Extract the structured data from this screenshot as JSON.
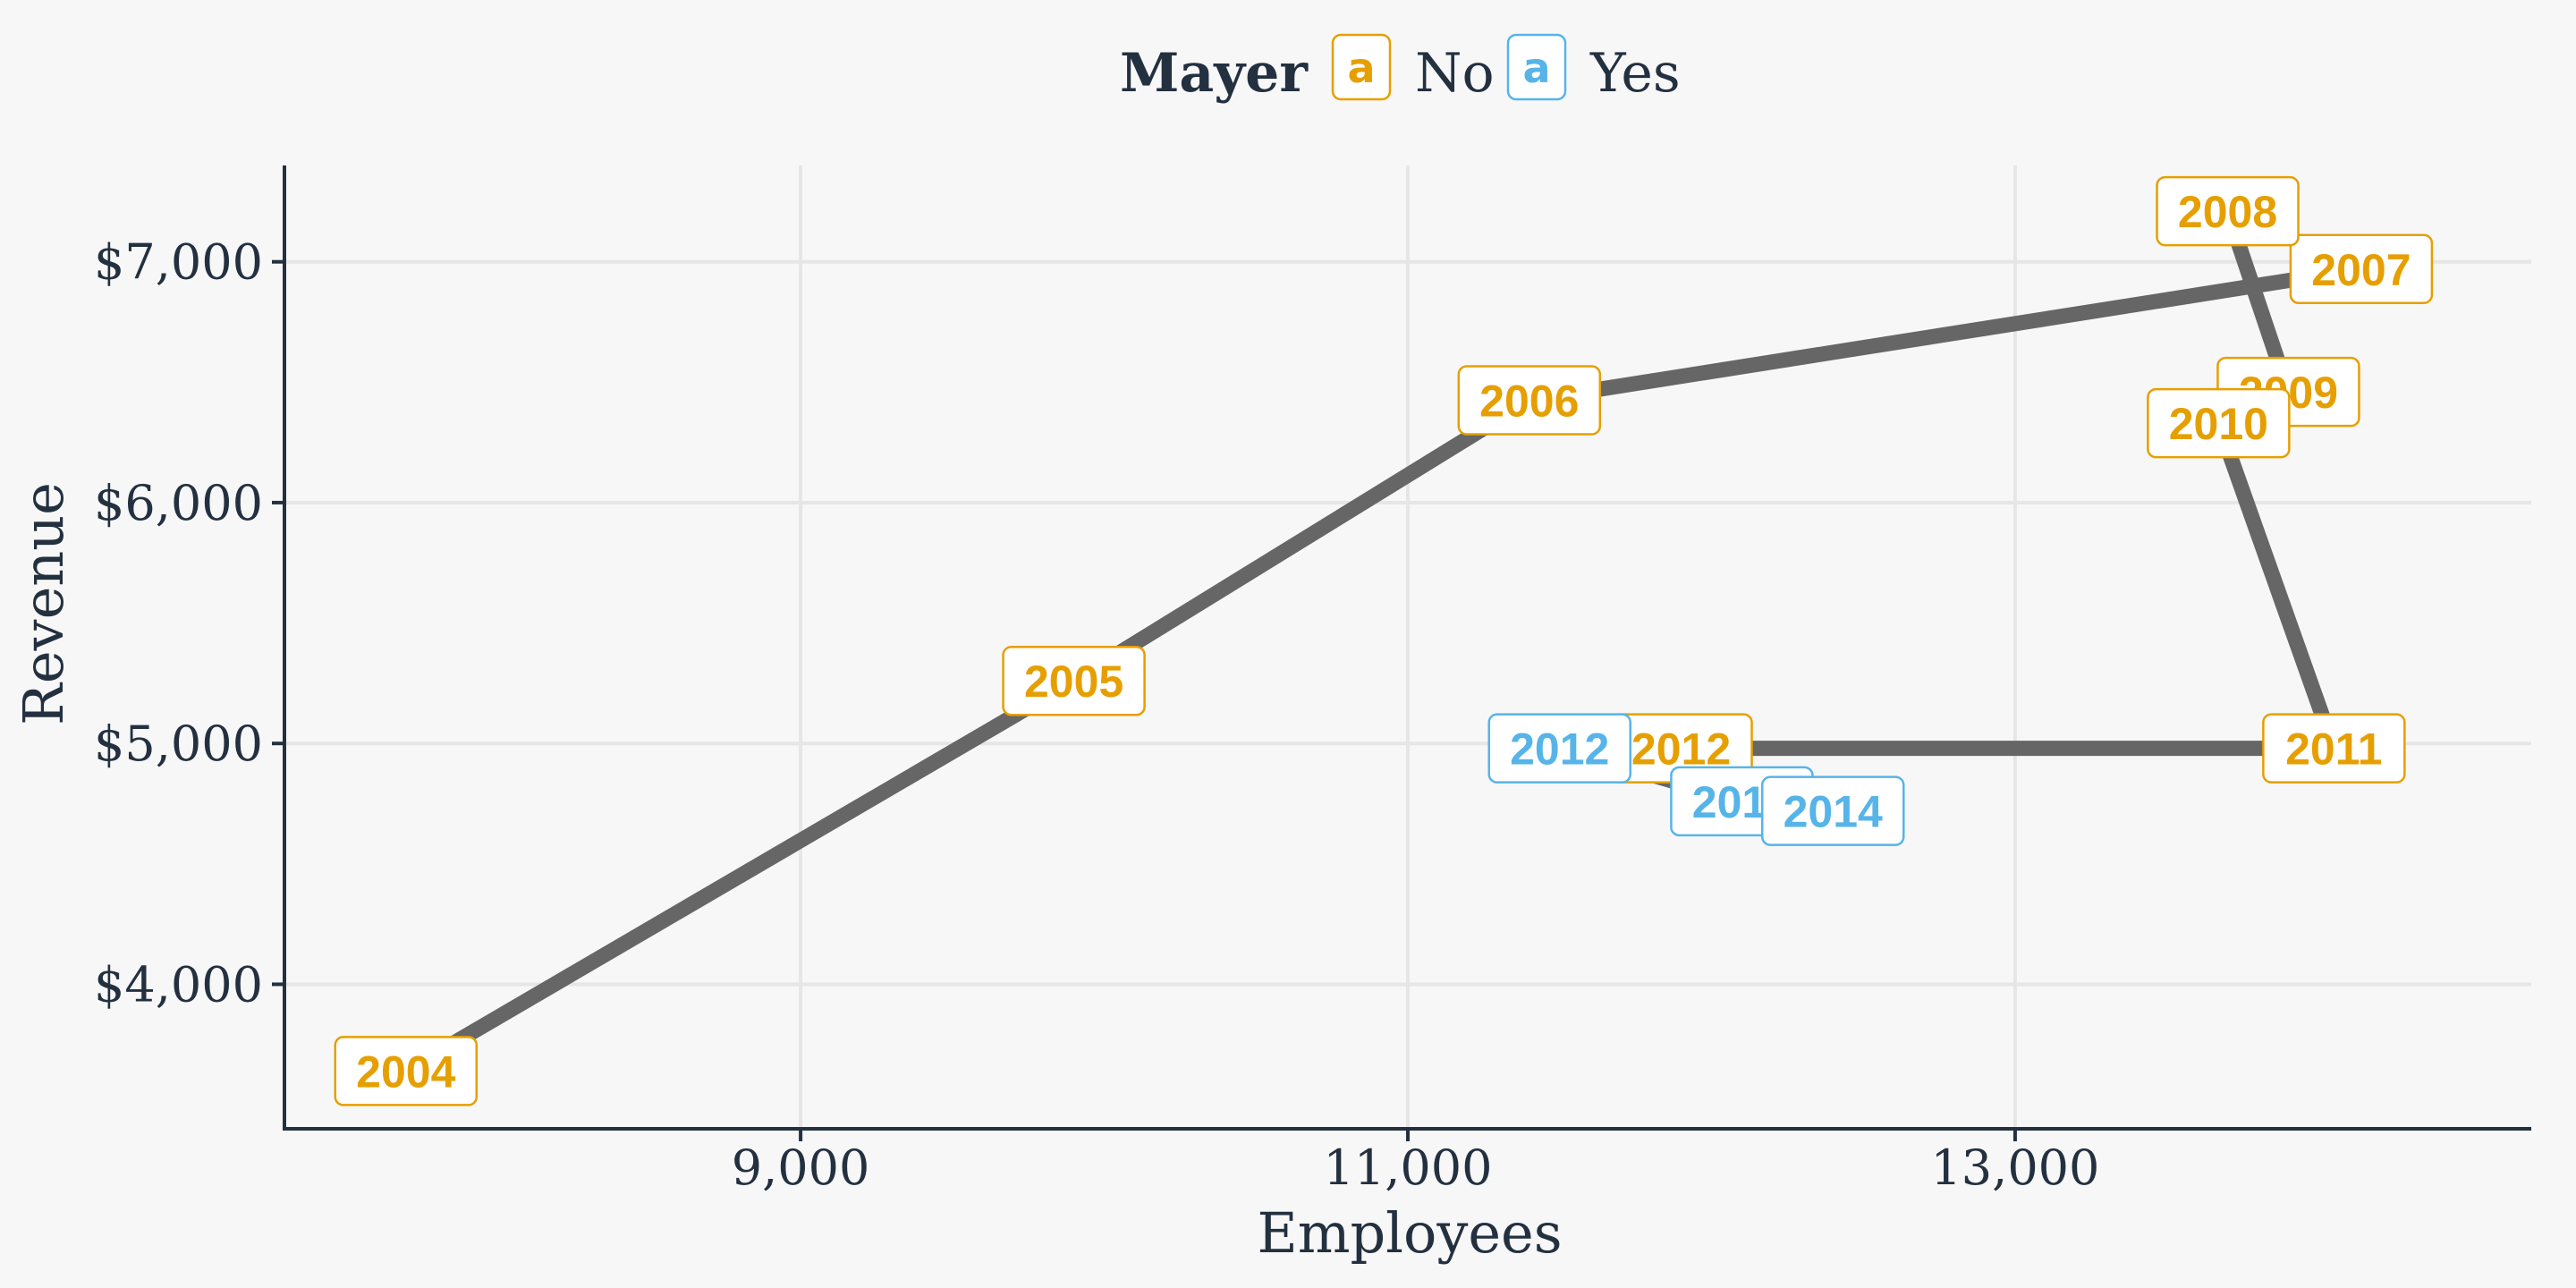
{
  "chart_data": {
    "type": "line",
    "title": "",
    "xlabel": "Employees",
    "ylabel": "Revenue",
    "xlim": [
      7300,
      14700
    ],
    "ylim": [
      3400,
      7400
    ],
    "x_ticks": [
      9000,
      11000,
      13000
    ],
    "x_tick_labels": [
      "9,000",
      "11,000",
      "13,000"
    ],
    "y_ticks": [
      4000,
      5000,
      6000,
      7000
    ],
    "y_tick_labels": [
      "$4,000",
      "$5,000",
      "$6,000",
      "$7,000"
    ],
    "grid": true,
    "legend": {
      "position": "top",
      "title": "Mayer",
      "key_glyph": "a",
      "entries": [
        {
          "label": "No",
          "color": "#E69F00"
        },
        {
          "label": "Yes",
          "color": "#56B4E9"
        }
      ]
    },
    "line_color": "#666666",
    "points": [
      {
        "label": "2004",
        "x": 7700,
        "y": 3640,
        "mayer": "No"
      },
      {
        "label": "2005",
        "x": 9900,
        "y": 5260,
        "mayer": "No"
      },
      {
        "label": "2006",
        "x": 11400,
        "y": 6425,
        "mayer": "No"
      },
      {
        "label": "2007",
        "x": 14140,
        "y": 6970,
        "mayer": "No"
      },
      {
        "label": "2008",
        "x": 13700,
        "y": 7210,
        "mayer": "No"
      },
      {
        "label": "2009",
        "x": 13900,
        "y": 6460,
        "mayer": "No"
      },
      {
        "label": "2010",
        "x": 13670,
        "y": 6330,
        "mayer": "No"
      },
      {
        "label": "2011",
        "x": 14050,
        "y": 4980,
        "mayer": "No"
      },
      {
        "label": "2012",
        "x": 11900,
        "y": 4980,
        "mayer": "No"
      },
      {
        "label": "2012",
        "x": 11500,
        "y": 4980,
        "mayer": "Yes"
      },
      {
        "label": "2013",
        "x": 12100,
        "y": 4760,
        "mayer": "Yes"
      },
      {
        "label": "2014",
        "x": 12400,
        "y": 4720,
        "mayer": "Yes"
      }
    ]
  }
}
